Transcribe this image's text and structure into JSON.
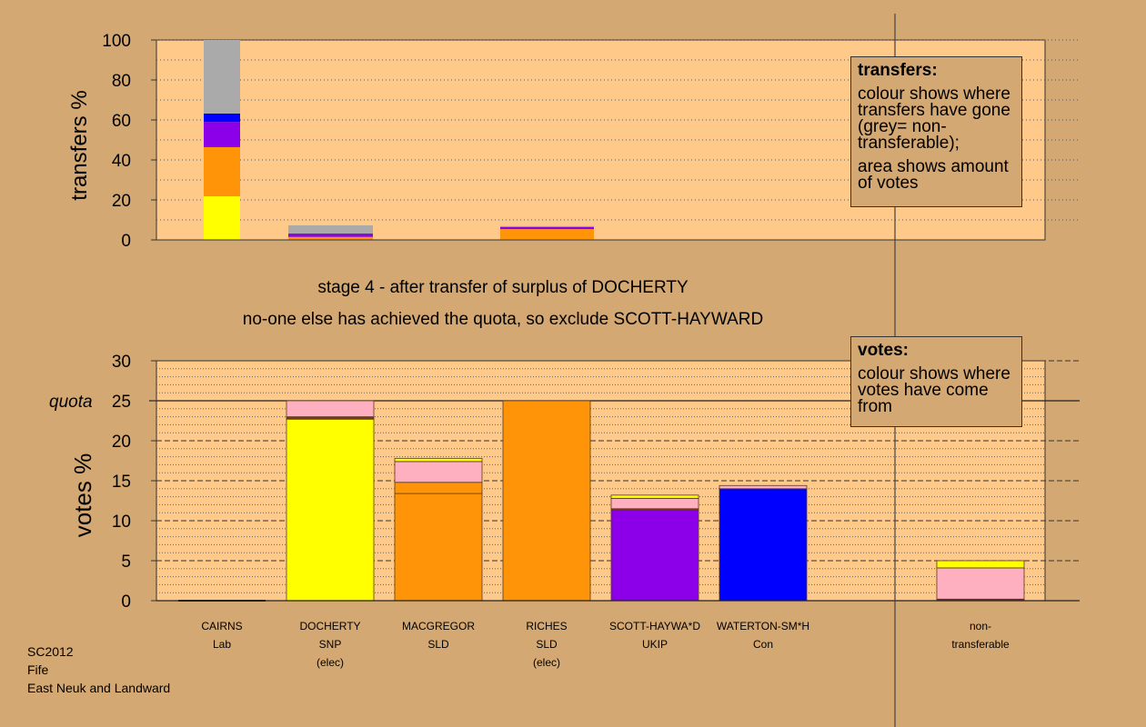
{
  "colors": {
    "background": "#d4a872",
    "plot": "#ffc98a",
    "yellow": "#ffff00",
    "orange": "#ff9408",
    "purple": "#8b00e8",
    "blue": "#0000ff",
    "grey": "#aaaaaa",
    "pink": "#ffb0c0",
    "brown": "#7a3a1a"
  },
  "chart_data": [
    {
      "type": "bar",
      "stacked": true,
      "title": "transfers",
      "ylabel": "transfers %",
      "ylim": [
        0,
        100
      ],
      "yticks": [
        0,
        20,
        40,
        60,
        80,
        100
      ],
      "categories": [
        "CAIRNS",
        "DOCHERTY",
        "RICHES"
      ],
      "series": [
        {
          "name": "yellow",
          "color": "yellow",
          "values": [
            21.8,
            0,
            0.3
          ]
        },
        {
          "name": "orange",
          "color": "orange",
          "values": [
            24.6,
            1.5,
            5.1
          ]
        },
        {
          "name": "purple",
          "color": "purple",
          "values": [
            12.6,
            1.2,
            1.1
          ]
        },
        {
          "name": "blue",
          "color": "blue",
          "values": [
            4.2,
            0.4,
            0
          ]
        },
        {
          "name": "non-transferable",
          "color": "grey",
          "values": [
            36.8,
            4.2,
            0.4
          ]
        }
      ]
    },
    {
      "type": "bar",
      "stacked": true,
      "title": "votes",
      "ylabel": "votes %",
      "ylim": [
        0,
        30
      ],
      "quota": 25,
      "yticks": [
        0,
        5,
        10,
        15,
        20,
        25,
        30
      ],
      "categories": [
        "CAIRNS",
        "DOCHERTY",
        "MACGREGOR",
        "RICHES",
        "SCOTT-HAYWA*D",
        "WATERTON-SM*H",
        "non-transferable"
      ],
      "series": [
        {
          "name": "own",
          "segments": [
            [],
            [
              {
                "color": "yellow",
                "value": 22.7
              },
              {
                "color": "brown",
                "value": 0.3
              },
              {
                "color": "pink",
                "value": 2.0
              }
            ],
            [
              {
                "color": "orange",
                "value": 13.4
              },
              {
                "color": "orange",
                "value": 1.4
              },
              {
                "color": "pink",
                "value": 2.6
              },
              {
                "color": "yellow",
                "value": 0.4
              }
            ],
            [
              {
                "color": "orange",
                "value": 25.0
              }
            ],
            [
              {
                "color": "purple",
                "value": 11.3
              },
              {
                "color": "brown",
                "value": 0.2
              },
              {
                "color": "pink",
                "value": 1.3
              },
              {
                "color": "yellow",
                "value": 0.4
              }
            ],
            [
              {
                "color": "blue",
                "value": 14.0
              },
              {
                "color": "pink",
                "value": 0.4
              }
            ],
            [
              {
                "color": "brown",
                "value": 0.2
              },
              {
                "color": "pink",
                "value": 3.9
              },
              {
                "color": "yellow",
                "value": 0.9
              }
            ]
          ]
        }
      ]
    }
  ],
  "top_axis": {
    "ylabel": "transfers %",
    "ticks": [
      "0",
      "20",
      "40",
      "60",
      "80",
      "100"
    ]
  },
  "bottom_axis": {
    "ylabel": "votes %",
    "ticks": [
      "0",
      "5",
      "10",
      "15",
      "20",
      "25",
      "30"
    ],
    "quota_label": "quota"
  },
  "legend_transfers": {
    "title": "transfers:",
    "line1": "colour shows where transfers have gone (grey= non-transferable);",
    "line2": "area shows amount of votes"
  },
  "legend_votes": {
    "title": "votes:",
    "line1": "colour shows where votes have come from"
  },
  "captions": {
    "stage": "stage 4 - after transfer of surplus of DOCHERTY",
    "action": "no-one else has achieved the quota, so exclude SCOTT-HAYWARD"
  },
  "candidates": [
    {
      "name": "CAIRNS",
      "party": "Lab",
      "note": ""
    },
    {
      "name": "DOCHERTY",
      "party": "SNP",
      "note": "(elec)"
    },
    {
      "name": "MACGREGOR",
      "party": "SLD",
      "note": ""
    },
    {
      "name": "RICHES",
      "party": "SLD",
      "note": "(elec)"
    },
    {
      "name": "SCOTT-HAYWA*D",
      "party": "UKIP",
      "note": ""
    },
    {
      "name": "WATERTON-SM*H",
      "party": "Con",
      "note": ""
    },
    {
      "name": "non-",
      "party": "transferable",
      "note": ""
    }
  ],
  "footer": {
    "election": "SC2012",
    "council": "Fife",
    "ward": "East Neuk and Landward"
  }
}
